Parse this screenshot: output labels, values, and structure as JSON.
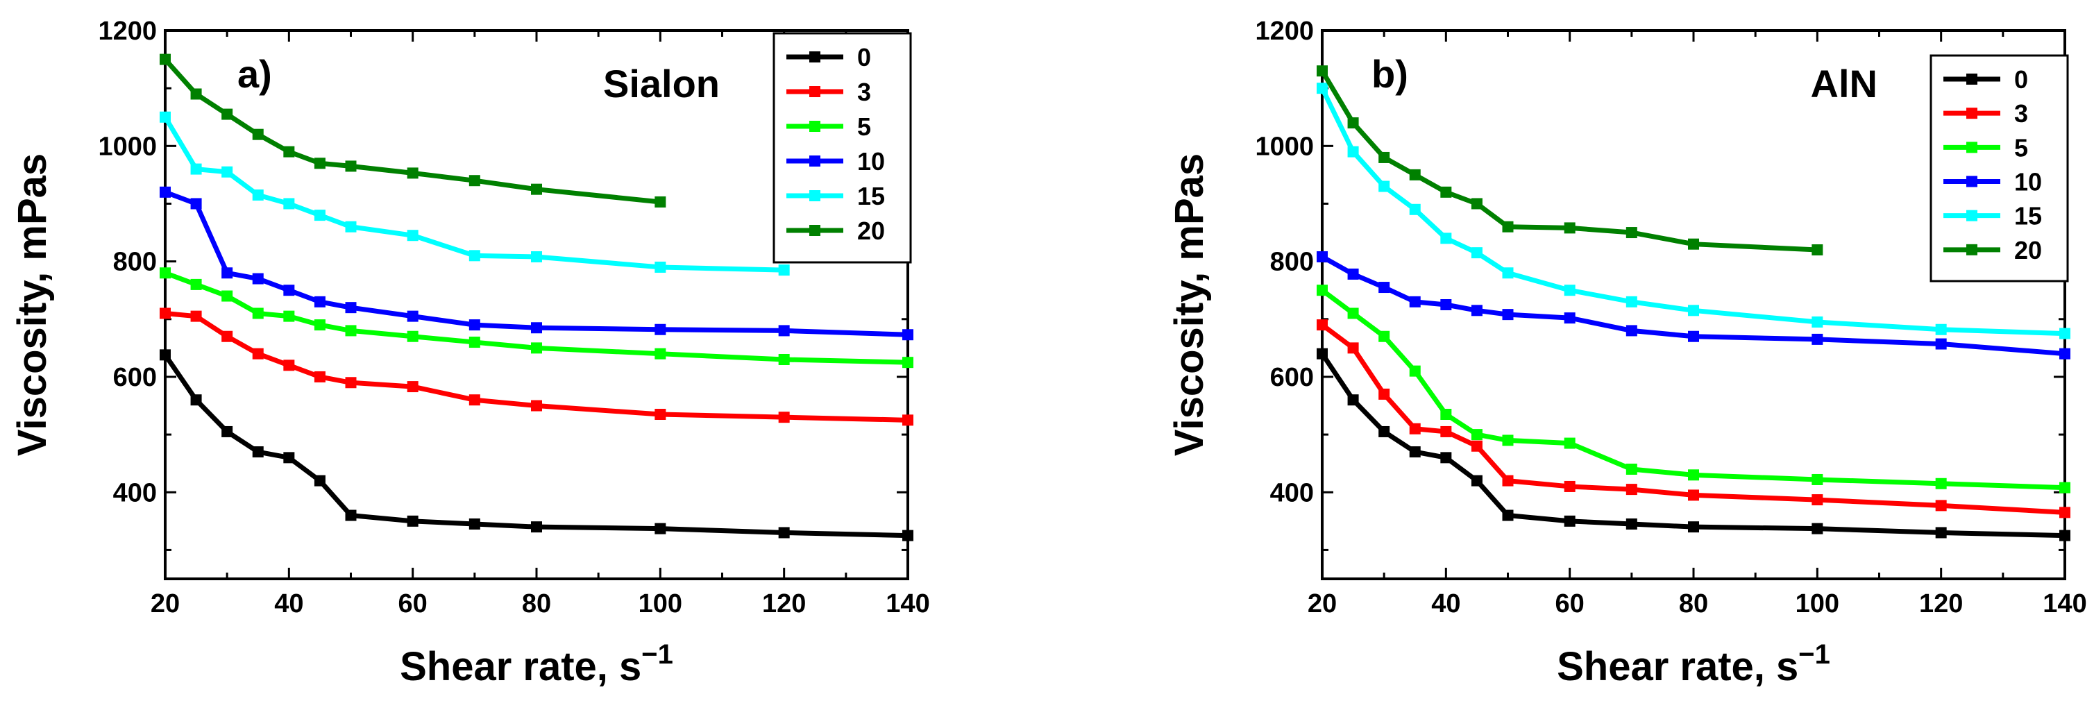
{
  "chart_data": [
    {
      "type": "line",
      "panel_label": "a)",
      "material": "Sialon",
      "xlabel": "Shear rate, s",
      "xlabel_sup": "−1",
      "ylabel": "Viscosity, mPas",
      "xlim": [
        20,
        140
      ],
      "ylim": [
        250,
        1200
      ],
      "xticks": [
        20,
        40,
        60,
        80,
        100,
        120,
        140
      ],
      "yticks": [
        400,
        600,
        800,
        1000,
        1200
      ],
      "legend_position": "top-right",
      "series": [
        {
          "name": "0",
          "color": "#000000",
          "x": [
            20,
            25,
            30,
            35,
            40,
            45,
            50,
            60,
            70,
            80,
            100,
            120,
            140
          ],
          "y": [
            638,
            560,
            505,
            470,
            460,
            420,
            360,
            350,
            345,
            340,
            337,
            330,
            325
          ]
        },
        {
          "name": "3",
          "color": "#ff0000",
          "x": [
            20,
            25,
            30,
            35,
            40,
            45,
            50,
            60,
            70,
            80,
            100,
            120,
            140
          ],
          "y": [
            710,
            705,
            670,
            640,
            620,
            600,
            590,
            583,
            560,
            550,
            535,
            530,
            525
          ]
        },
        {
          "name": "5",
          "color": "#00ff00",
          "x": [
            20,
            25,
            30,
            35,
            40,
            45,
            50,
            60,
            70,
            80,
            100,
            120,
            140
          ],
          "y": [
            780,
            760,
            740,
            710,
            705,
            690,
            680,
            670,
            660,
            650,
            640,
            630,
            625
          ]
        },
        {
          "name": "10",
          "color": "#0000ff",
          "x": [
            20,
            25,
            30,
            35,
            40,
            45,
            50,
            60,
            70,
            80,
            100,
            120,
            140
          ],
          "y": [
            920,
            900,
            780,
            770,
            750,
            730,
            720,
            705,
            690,
            685,
            682,
            680,
            673
          ]
        },
        {
          "name": "15",
          "color": "#00ffff",
          "x": [
            20,
            25,
            30,
            35,
            40,
            45,
            50,
            60,
            70,
            80,
            100,
            120
          ],
          "y": [
            1050,
            960,
            955,
            915,
            900,
            880,
            860,
            845,
            810,
            808,
            790,
            785
          ]
        },
        {
          "name": "20",
          "color": "#008000",
          "x": [
            20,
            25,
            30,
            35,
            40,
            45,
            50,
            60,
            70,
            80,
            100
          ],
          "y": [
            1150,
            1090,
            1055,
            1020,
            990,
            970,
            965,
            953,
            940,
            925,
            903
          ]
        }
      ]
    },
    {
      "type": "line",
      "panel_label": "b)",
      "material": "AlN",
      "xlabel": "Shear rate, s",
      "xlabel_sup": "−1",
      "ylabel": "Viscosity, mPas",
      "xlim": [
        20,
        140
      ],
      "ylim": [
        250,
        1200
      ],
      "xticks": [
        20,
        40,
        60,
        80,
        100,
        120,
        140
      ],
      "yticks": [
        400,
        600,
        800,
        1000,
        1200
      ],
      "legend_position": "top-right",
      "series": [
        {
          "name": "0",
          "color": "#000000",
          "x": [
            20,
            25,
            30,
            35,
            40,
            45,
            50,
            60,
            70,
            80,
            100,
            120,
            140
          ],
          "y": [
            640,
            560,
            505,
            470,
            460,
            420,
            360,
            350,
            345,
            340,
            337,
            330,
            325
          ]
        },
        {
          "name": "3",
          "color": "#ff0000",
          "x": [
            20,
            25,
            30,
            35,
            40,
            45,
            50,
            60,
            70,
            80,
            100,
            120,
            140
          ],
          "y": [
            690,
            650,
            570,
            510,
            505,
            480,
            420,
            410,
            405,
            395,
            387,
            377,
            365
          ]
        },
        {
          "name": "5",
          "color": "#00ff00",
          "x": [
            20,
            25,
            30,
            35,
            40,
            45,
            50,
            60,
            70,
            80,
            100,
            120,
            140
          ],
          "y": [
            750,
            710,
            670,
            610,
            535,
            500,
            490,
            485,
            440,
            430,
            422,
            415,
            408
          ]
        },
        {
          "name": "10",
          "color": "#0000ff",
          "x": [
            20,
            25,
            30,
            35,
            40,
            45,
            50,
            60,
            70,
            80,
            100,
            120,
            140
          ],
          "y": [
            808,
            778,
            755,
            730,
            725,
            715,
            708,
            702,
            680,
            670,
            665,
            657,
            640
          ]
        },
        {
          "name": "15",
          "color": "#00ffff",
          "x": [
            20,
            25,
            30,
            35,
            40,
            45,
            50,
            60,
            70,
            80,
            100,
            120,
            140
          ],
          "y": [
            1100,
            990,
            930,
            890,
            840,
            815,
            780,
            750,
            730,
            715,
            695,
            682,
            675
          ]
        },
        {
          "name": "20",
          "color": "#008000",
          "x": [
            20,
            25,
            30,
            35,
            40,
            45,
            50,
            60,
            70,
            80,
            100
          ],
          "y": [
            1130,
            1040,
            980,
            950,
            920,
            900,
            860,
            858,
            850,
            830,
            820
          ]
        }
      ]
    }
  ]
}
